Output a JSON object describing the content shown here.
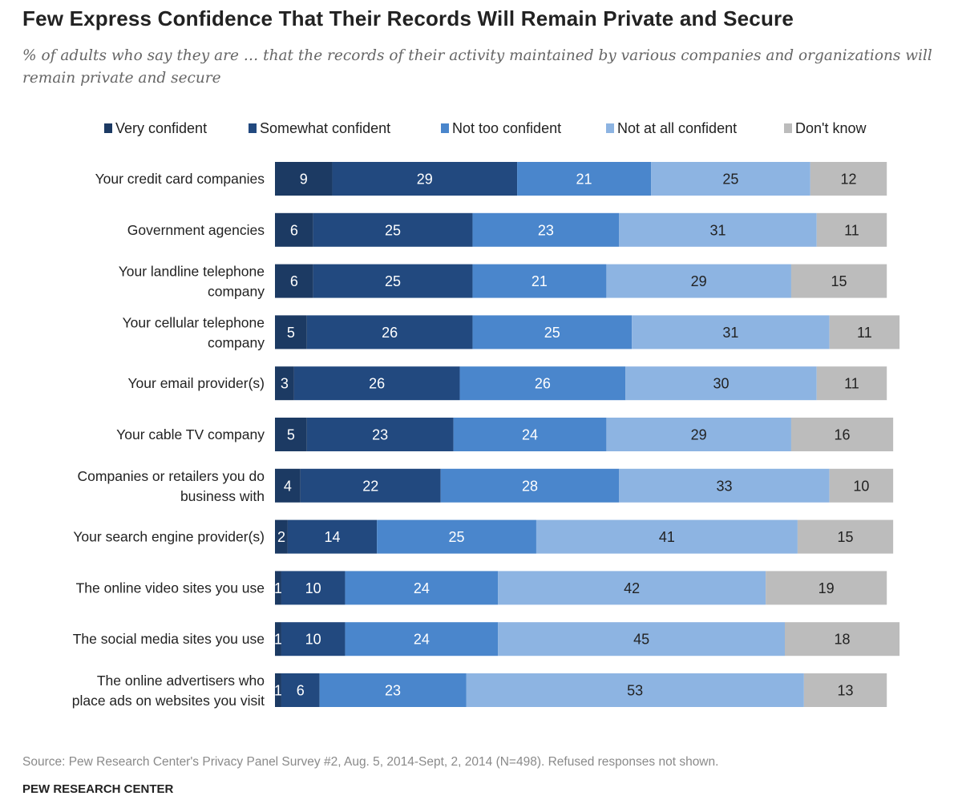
{
  "title": "Few Express Confidence That Their Records Will Remain Private and Secure",
  "subtitle": "% of adults who say they are … that the records of their activity maintained by various companies and organizations will remain private and secure",
  "source": "Source: Pew Research Center's Privacy Panel Survey #2, Aug. 5, 2014-Sept, 2, 2014 (N=498). Refused responses not shown.",
  "organization": "PEW RESEARCH CENTER",
  "colors": {
    "very_confident": "#1c3a63",
    "somewhat_confident": "#22497f",
    "not_too_confident": "#4a86cc",
    "not_at_all_confident": "#8db4e2",
    "dont_know": "#bcbcbc",
    "label_light": "#ffffff",
    "label_dark": "#222222"
  },
  "chart_data": {
    "type": "bar",
    "orientation": "horizontal",
    "stacked": true,
    "legend_position": "top",
    "grid": false,
    "categories": [
      "Your credit card companies",
      "Government agencies",
      "Your landline telephone company",
      "Your cellular telephone company",
      "Your email provider(s)",
      "Your cable TV company",
      "Companies or retailers you do business with",
      "Your search engine provider(s)",
      "The online video sites you use",
      "The social media sites you use",
      "The online advertisers who place ads on websites you visit"
    ],
    "series": [
      {
        "name": "Very confident",
        "values": [
          9,
          6,
          6,
          5,
          3,
          5,
          4,
          2,
          1,
          1,
          1
        ]
      },
      {
        "name": "Somewhat confident",
        "values": [
          29,
          25,
          25,
          26,
          26,
          23,
          22,
          14,
          10,
          10,
          6
        ]
      },
      {
        "name": "Not too confident",
        "values": [
          21,
          23,
          21,
          25,
          26,
          24,
          28,
          25,
          24,
          24,
          23
        ]
      },
      {
        "name": "Not at all confident",
        "values": [
          25,
          31,
          29,
          31,
          30,
          29,
          33,
          41,
          42,
          45,
          53
        ]
      },
      {
        "name": "Don't know",
        "values": [
          12,
          11,
          15,
          11,
          11,
          16,
          10,
          15,
          19,
          18,
          13
        ]
      }
    ],
    "xlim": [
      0,
      100
    ]
  }
}
